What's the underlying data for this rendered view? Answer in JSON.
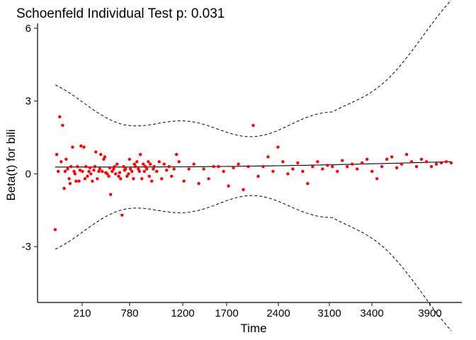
{
  "chart_data": {
    "type": "scatter",
    "title": "Schoenfeld Individual Test p: 0.031",
    "xlabel": "Time",
    "ylabel": "Beta(t) for bili",
    "x_ticks": [
      "210",
      "780",
      "1200",
      "1700",
      "2400",
      "3100",
      "3400",
      "3900"
    ],
    "y_ticks": [
      "6",
      "3",
      "0",
      "-3"
    ],
    "y_tick_values": [
      6,
      3,
      0,
      -3
    ],
    "ylim": [
      -5.3,
      6.2
    ],
    "grid": false,
    "colors": {
      "points": "#ff0000",
      "lines": "#000000"
    },
    "series": [
      {
        "kind": "points",
        "x": [
          0.0,
          0.03,
          0.06,
          0.09,
          0.12,
          0.15,
          0.18,
          0.2,
          0.22,
          0.25,
          0.28,
          0.3,
          0.32,
          0.35,
          0.38,
          0.4,
          0.42,
          0.45,
          0.48,
          0.5,
          0.52,
          0.55,
          0.58,
          0.6,
          0.62,
          0.65,
          0.68,
          0.7,
          0.72,
          0.75,
          0.78,
          0.8,
          0.82,
          0.85,
          0.88,
          0.9,
          0.92,
          0.95,
          0.98,
          1.0,
          1.02,
          1.05,
          1.08,
          1.1,
          1.12,
          1.15,
          1.18,
          1.2,
          1.22,
          1.25,
          1.28,
          1.3,
          1.32,
          1.35,
          1.38,
          1.4,
          1.42,
          1.45,
          1.48,
          1.5,
          1.52,
          1.55,
          1.58,
          1.6,
          1.62,
          1.65,
          1.68,
          1.7,
          1.72,
          1.75,
          1.78,
          1.8,
          1.82,
          1.85,
          1.88,
          1.9,
          1.92,
          1.95,
          1.98,
          2.0,
          2.05,
          2.1,
          2.15,
          2.2,
          2.25,
          2.3,
          2.35,
          2.4,
          2.45,
          2.5,
          2.6,
          2.7,
          2.8,
          2.9,
          3.0,
          3.1,
          3.2,
          3.3,
          3.4,
          3.5,
          3.6,
          3.7,
          3.8,
          3.9,
          4.0,
          4.1,
          4.2,
          4.3,
          4.4,
          4.5,
          4.6,
          4.7,
          4.8,
          4.9,
          5.0,
          5.1,
          5.2,
          5.3,
          5.4,
          5.5,
          5.6,
          5.7,
          5.8,
          5.9,
          6.0,
          6.1,
          6.2,
          6.3,
          6.4,
          6.5,
          6.6,
          6.7,
          6.8,
          6.9,
          7.0,
          7.1,
          7.2,
          7.3,
          7.4,
          7.5,
          7.6,
          7.7,
          7.8,
          7.9,
          8.0
        ],
        "y": [
          -2.3,
          0.8,
          0.1,
          2.35,
          0.5,
          2.0,
          -0.6,
          0.1,
          0.6,
          0.2,
          -0.2,
          -0.4,
          0.3,
          1.1,
          0.1,
          0.0,
          -0.3,
          0.3,
          -0.3,
          0.15,
          1.15,
          0.1,
          1.1,
          -0.2,
          0.3,
          -0.1,
          0.1,
          0.25,
          0.0,
          -0.3,
          0.15,
          0.3,
          0.9,
          -0.2,
          0.1,
          0.2,
          0.8,
          0.1,
          0.6,
          0.7,
          0.05,
          0.0,
          -0.1,
          0.25,
          -0.85,
          0.1,
          0.2,
          0.3,
          0.0,
          0.4,
          -0.1,
          0.05,
          -0.2,
          -1.7,
          0.3,
          0.15,
          0.2,
          -0.1,
          0.0,
          0.6,
          0.2,
          0.1,
          -0.2,
          0.4,
          0.3,
          0.5,
          0.2,
          0.1,
          0.8,
          -0.2,
          0.4,
          0.1,
          0.3,
          0.2,
          0.5,
          -0.1,
          0.4,
          -0.3,
          0.2,
          0.3,
          0.1,
          0.5,
          -0.2,
          0.4,
          0.15,
          0.3,
          -0.1,
          0.2,
          0.8,
          0.5,
          -0.3,
          0.2,
          0.4,
          -0.4,
          0.2,
          -0.2,
          0.3,
          0.3,
          0.1,
          -0.5,
          0.25,
          0.4,
          -0.65,
          0.3,
          2.0,
          -0.1,
          0.3,
          0.7,
          0.1,
          1.1,
          0.5,
          0.0,
          0.2,
          0.45,
          0.1,
          -0.4,
          0.3,
          0.5,
          0.2,
          0.35,
          0.3,
          0.1,
          0.55,
          0.3,
          0.4,
          0.2,
          0.45,
          0.6,
          0.1,
          -0.2,
          0.3,
          0.6,
          0.7,
          0.25,
          0.4,
          0.8,
          0.5,
          0.3,
          0.6,
          0.5,
          0.3,
          0.4,
          0.45,
          0.5,
          0.45
        ],
        "note_x_scale": "position along the transformed time axis (tick labels above)"
      }
    ]
  }
}
